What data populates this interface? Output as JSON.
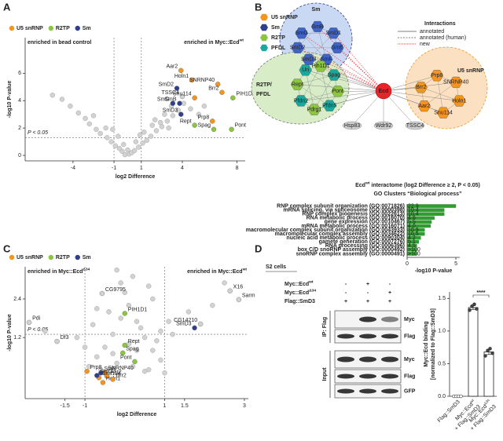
{
  "panel_labels": [
    "A",
    "B",
    "C",
    "D"
  ],
  "chart_data": [
    {
      "type": "volcano",
      "legend": "top-left",
      "xlabel": "log2 Difference",
      "ylabel": "-log10 P-value",
      "xlim": [
        -7.5,
        8.6
      ],
      "ylim": [
        -0.4,
        8.6
      ],
      "xticks": [
        -4,
        -1,
        1,
        4,
        8
      ],
      "yticks": [
        0,
        2,
        4,
        6
      ],
      "vlines": [
        -1,
        1
      ],
      "threshold_y": 1.3,
      "threshold_label": "P < 0.05",
      "annotation_left": "enriched in bead control",
      "annotation_right": {
        "text": "enriched in Myc::Ecd",
        "sup": "wt"
      },
      "background": {
        "color": "#d2d2d2",
        "x": [
          -0.2,
          0.1,
          0.3,
          -0.4,
          0.5,
          -0.6,
          0.8,
          -0.9,
          1.1,
          -1.2,
          1.4,
          -1.5,
          1.7,
          -2.0,
          2.1,
          -2.3,
          2.5,
          -2.8,
          2.9,
          -3.1,
          3.3,
          -3.6,
          3.7,
          -4.2,
          4.1,
          -4.8,
          4.6,
          -5.5,
          5.2,
          0.0,
          0.6,
          -0.7,
          1.2,
          -1.6,
          2.0,
          2.7,
          -2.5,
          3.2,
          0.9,
          -0.3,
          1.8,
          2.4,
          -1.1,
          3.0,
          5.6
        ],
        "y": [
          0.05,
          0.1,
          0.2,
          0.3,
          0.35,
          0.5,
          0.6,
          0.7,
          0.9,
          1.0,
          1.1,
          1.3,
          1.4,
          1.6,
          1.8,
          1.9,
          2.1,
          2.3,
          2.5,
          2.7,
          2.9,
          3.1,
          3.3,
          3.6,
          3.8,
          4.1,
          3.4,
          4.4,
          3.0,
          0.4,
          1.0,
          1.4,
          1.7,
          2.0,
          2.6,
          3.0,
          2.9,
          3.6,
          1.5,
          0.8,
          2.2,
          2.4,
          1.9,
          2.0,
          3.6
        ]
      },
      "labeled_other": {
        "color": "#d2d2d2",
        "x": [
          4.0
        ],
        "y": [
          4.3
        ],
        "labels": [
          "TSSC4"
        ]
      },
      "series": [
        {
          "name": "U5 snRNP",
          "color": "#f7941d",
          "x": [
            3.9,
            4.7,
            6.6,
            6.9,
            4.9,
            6.2
          ],
          "y": [
            6.2,
            5.5,
            5.2,
            4.6,
            4.2,
            2.5
          ],
          "labels": [
            "Aar2",
            "Holn1",
            "SNRNP40",
            "Brr2",
            "Snu114",
            "Prp8"
          ]
        },
        {
          "name": "R2TP",
          "color": "#8cc63f",
          "x": [
            7.7,
            4.9,
            6.3,
            7.6
          ],
          "y": [
            4.2,
            2.2,
            1.9,
            1.9
          ],
          "labels": [
            "PIH1D1",
            "Rept",
            "Spag",
            "Pont"
          ]
        },
        {
          "name": "Sm",
          "color": "#2e3f8f",
          "x": [
            3.6,
            3.3,
            3.8,
            3.9
          ],
          "y": [
            4.9,
            3.8,
            3.8,
            3.0
          ],
          "labels": [
            "SmD2",
            "SmG",
            "SmB",
            "SmD3"
          ]
        }
      ]
    },
    {
      "type": "hbar",
      "title": {
        "text": "Ecd",
        "sup": "wt",
        "rest": "interactome (log2 Difference ≥ 2, P < 0.05)"
      },
      "subtitle": "GO Clusters “Biological process”",
      "xlabel": "-log10 P-value",
      "xlim": [
        0,
        5.4
      ],
      "xticks": [
        0,
        5
      ],
      "color": "#2f9e2f",
      "categories": [
        "RNP complex subunit organization (GO:0071826)",
        "mRNA splicing, via spliceosome (GO:0000398)",
        "RNP complex biogenesis (GO:0022613)",
        "RNA metabolic process (GO:0016070)",
        "gene expression (GO:0010467)",
        "mRNA metabolic process (GO:0016071)",
        "macromolecular complex subunit organization (GO:0043933)",
        "macromolecular complex assembly (GO:0034622)",
        "nucleic acid metabolic process (GO:0090304)",
        "gamete generation (GO:0007276)",
        "RNA processing (GO:0006396)",
        "box C/D snoRNP assembly (GO:0000492)",
        "snoRNP complex assembly (GO:0000491)"
      ],
      "values": [
        5.0,
        3.8,
        3.8,
        2.8,
        2.5,
        2.4,
        1.8,
        1.8,
        1.4,
        1.2,
        1.0,
        1.0,
        1.0
      ],
      "bar_texts": [
        "22.9",
        "10.4",
        "10.4",
        "4.6",
        "5.5",
        "4.0",
        "10.9",
        "10.5",
        "4.2",
        "5.1",
        "4.5",
        ">100",
        ">100"
      ]
    },
    {
      "type": "volcano",
      "legend": "top-left",
      "xlabel": "log2 Difference",
      "ylabel": "-log10 P-value",
      "xlim": [
        -2.5,
        3.1
      ],
      "ylim": [
        -0.7,
        3.4
      ],
      "xticks": [
        -1.5,
        -1,
        1,
        1.5,
        3
      ],
      "yticks": [
        1.2,
        2.4
      ],
      "vlines": [
        -1,
        1
      ],
      "threshold_y": 1.3,
      "threshold_label": "P < 0.05",
      "annotation_left": {
        "text": "enriched in Myc::Ecd",
        "sup": "Δ34"
      },
      "annotation_right": {
        "text": "enriched in Myc::Ecd",
        "sup": "wt"
      },
      "background": {
        "color": "#d2d2d2",
        "x": [
          -0.9,
          -0.7,
          -0.5,
          -0.3,
          -0.1,
          0.1,
          0.3,
          0.5,
          0.7,
          0.9,
          -0.8,
          -0.4,
          0.0,
          0.4,
          0.8,
          -0.6,
          -0.2,
          0.2,
          0.6,
          1.0,
          -1.0,
          -0.5,
          0.5,
          -0.3,
          0.3,
          0.1,
          -0.1,
          0.9,
          1.2,
          -1.2,
          0.7,
          -0.7,
          0.2,
          -0.2,
          0.6,
          1.1,
          2.2,
          2.5,
          -2.0,
          1.6
        ],
        "y": [
          0.3,
          0.6,
          0.9,
          1.3,
          1.8,
          2.2,
          1.7,
          1.2,
          0.8,
          0.5,
          1.6,
          2.0,
          2.6,
          1.5,
          1.1,
          0.2,
          0.4,
          0.3,
          0.2,
          0.1,
          0.9,
          0.1,
          0.15,
          0.7,
          0.8,
          1.0,
          2.9,
          1.4,
          1.3,
          1.2,
          2.4,
          2.1,
          3.1,
          3.3,
          2.8,
          1.7,
          2.2,
          2.9,
          1.4,
          2.0
        ]
      },
      "labeled_other": {
        "color": "#d2d2d2",
        "x": [
          -0.57,
          -2.4,
          -1.7,
          2.64,
          2.86,
          1.9
        ],
        "y": [
          2.57,
          1.67,
          1.08,
          2.65,
          2.38,
          1.62
        ],
        "labels": [
          "CG9795",
          "Pdi",
          "Df3",
          "X16",
          "Sarm",
          "CG14210"
        ]
      },
      "series": [
        {
          "name": "U5 snRNP",
          "color": "#f7941d",
          "x": [
            -0.95,
            -0.5,
            -0.45,
            -0.65,
            -0.55,
            -0.3
          ],
          "y": [
            0.15,
            0.12,
            0.0,
            -0.05,
            -0.2,
            -0.1
          ],
          "labels": [
            "Prp8",
            "SNRNP40",
            "Aar2",
            "Snu114",
            "Holn1",
            "Brr2"
          ]
        },
        {
          "name": "R2TP",
          "color": "#8cc63f",
          "x": [
            0.0,
            0.0,
            -0.05,
            0.25
          ],
          "y": [
            1.95,
            0.96,
            0.72,
            0.45
          ],
          "labels": [
            "PIH1D1",
            "Rept",
            "Spag",
            "Pont"
          ]
        },
        {
          "name": "Sm",
          "color": "#2e3f8f",
          "x": [
            -0.6,
            -0.7,
            1.75
          ],
          "y": [
            0.1,
            0.02,
            1.5
          ],
          "labels": [
            "SmB",
            "SmG",
            "SmD3"
          ]
        }
      ]
    },
    {
      "type": "bar",
      "ylabel": [
        "Myc::Ecd binding",
        "[normalized to Flag::SmD3]"
      ],
      "categories": [
        [
          "Flag::SmD3"
        ],
        [
          "Myc::Ecd",
          "wt",
          "+ Flag::SmD3"
        ],
        [
          "Myc::Ecd",
          "Δ34",
          "+ Flag::SmD3"
        ]
      ],
      "values": [
        0.0,
        1.36,
        0.68
      ],
      "errors": [
        0.0,
        0.03,
        0.04
      ],
      "replicates": [
        [
          0.0,
          0.0,
          0.0,
          0.0
        ],
        [
          1.32,
          1.38,
          1.41,
          1.34
        ],
        [
          0.62,
          0.7,
          0.73,
          0.66
        ]
      ],
      "ylim": [
        0,
        1.6
      ],
      "yticks": [
        {
          "value": 0,
          "label": "0.0"
        },
        0.5,
        {
          "value": 1,
          "label": "1.0"
        },
        1.5
      ],
      "significance": "****",
      "color": "#ffffff"
    }
  ],
  "network": {
    "legend": [
      {
        "label": "U5 snRNP",
        "color": "#f7941d"
      },
      {
        "label": "Sm",
        "color": "#2e3f8f"
      },
      {
        "label": "R2TP",
        "color": "#8cc63f"
      },
      {
        "label": "PFDL",
        "color": "#1aa89c"
      }
    ],
    "interactions": {
      "title": "Interactions",
      "items": [
        "annotated",
        "annotated (human)",
        "new"
      ]
    },
    "hub": "Ecd",
    "sm": {
      "title": "Sm",
      "nodes": [
        "SmB",
        "SmD1",
        "SmE",
        "SmF",
        "SmD3",
        "SmD2",
        "SmG"
      ]
    },
    "r2tp": {
      "title_lines": [
        "R2TP/",
        "PFDL"
      ],
      "nodes": [
        "Uri",
        "Pih1D1",
        "Spag",
        "Pont",
        "Pfdn5",
        "Pdrg1",
        "Pfdn2",
        "Rept"
      ]
    },
    "u5": {
      "title": "U5 snRNP",
      "nodes": [
        "Prp8",
        "SNRNP40",
        "Holn1",
        "Snu114",
        "Aar2",
        "Brr2"
      ]
    },
    "others": [
      "Hsp83",
      "Wdr92",
      "TSSC4"
    ]
  },
  "blot": {
    "header": "S2 cells",
    "rows": [
      {
        "text": "Myc::Ecd",
        "sup": "wt",
        "signs": [
          "-",
          "+",
          "-"
        ]
      },
      {
        "text": "Myc::Ecd",
        "sup": "Δ34",
        "signs": [
          "-",
          "-",
          "+"
        ]
      },
      {
        "text": "Flag::SmD3",
        "signs": [
          "+",
          "+",
          "+"
        ]
      }
    ],
    "groups": [
      {
        "label": "IP: Flag",
        "bands": [
          "Myc",
          "Flag"
        ]
      },
      {
        "label": "Input",
        "bands": [
          "Myc",
          "Flag",
          "GFP"
        ]
      }
    ]
  }
}
